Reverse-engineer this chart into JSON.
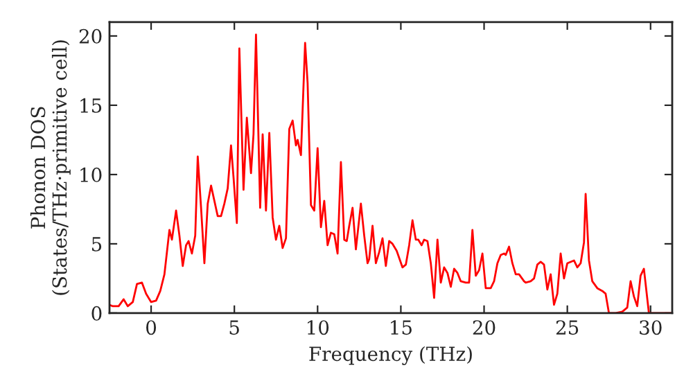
{
  "chart_data": {
    "type": "line",
    "xlabel": "Frequency (THz)",
    "ylabel": "Phonon DOS\n(States/THz·primitive cell)",
    "x": [
      -2.5,
      -2.3,
      -1.95,
      -1.65,
      -1.4,
      -1.1,
      -0.85,
      -0.55,
      -0.3,
      0.0,
      0.3,
      0.55,
      0.8,
      1.1,
      1.25,
      1.5,
      1.7,
      1.9,
      2.1,
      2.25,
      2.45,
      2.65,
      2.8,
      3.0,
      3.2,
      3.4,
      3.6,
      3.8,
      4.0,
      4.2,
      4.4,
      4.6,
      4.8,
      4.95,
      5.15,
      5.3,
      5.55,
      5.75,
      6.0,
      6.15,
      6.3,
      6.55,
      6.7,
      6.9,
      7.1,
      7.3,
      7.5,
      7.7,
      7.9,
      8.1,
      8.3,
      8.5,
      8.7,
      8.8,
      9.0,
      9.25,
      9.4,
      9.6,
      9.8,
      10.0,
      10.2,
      10.4,
      10.6,
      10.8,
      11.0,
      11.2,
      11.4,
      11.6,
      11.75,
      11.9,
      12.1,
      12.3,
      12.6,
      12.8,
      13.0,
      13.1,
      13.3,
      13.5,
      13.7,
      13.9,
      14.1,
      14.3,
      14.5,
      14.75,
      15.1,
      15.3,
      15.5,
      15.7,
      15.9,
      16.05,
      16.25,
      16.4,
      16.6,
      16.8,
      17.0,
      17.2,
      17.4,
      17.6,
      17.8,
      18.0,
      18.2,
      18.4,
      18.6,
      18.9,
      19.1,
      19.3,
      19.5,
      19.7,
      19.9,
      20.1,
      20.4,
      20.6,
      20.8,
      21.0,
      21.2,
      21.3,
      21.5,
      21.7,
      21.9,
      22.1,
      22.4,
      22.5,
      22.8,
      23.0,
      23.2,
      23.4,
      23.6,
      23.8,
      24.0,
      24.2,
      24.4,
      24.6,
      24.8,
      25.0,
      25.2,
      25.4,
      25.6,
      25.8,
      26.0,
      26.1,
      26.3,
      26.5,
      26.8,
      27.1,
      27.3,
      27.5,
      27.9,
      28.3,
      28.6,
      28.8,
      29.0,
      29.2,
      29.4,
      29.6,
      29.9,
      31.3
    ],
    "series": [
      {
        "color": "#ff0000",
        "values": [
          0.6,
          0.5,
          0.5,
          1.0,
          0.5,
          0.8,
          2.1,
          2.2,
          1.4,
          0.8,
          0.9,
          1.6,
          2.8,
          6.0,
          5.3,
          7.4,
          5.6,
          3.4,
          4.9,
          5.2,
          4.3,
          5.6,
          11.3,
          7.6,
          3.6,
          7.9,
          9.2,
          8.1,
          7.0,
          7.0,
          7.9,
          9.0,
          12.1,
          9.8,
          6.5,
          19.1,
          8.9,
          14.1,
          10.1,
          12.9,
          20.1,
          7.6,
          12.9,
          7.4,
          13.0,
          6.9,
          5.3,
          6.3,
          4.7,
          5.4,
          13.3,
          13.9,
          12.1,
          12.5,
          11.4,
          19.5,
          16.6,
          7.8,
          7.4,
          11.9,
          6.2,
          8.1,
          4.9,
          5.8,
          5.7,
          4.3,
          10.9,
          5.3,
          5.2,
          6.3,
          7.6,
          4.6,
          7.9,
          5.6,
          3.6,
          3.9,
          6.3,
          3.6,
          4.4,
          5.4,
          3.4,
          5.2,
          5.0,
          4.5,
          3.3,
          3.5,
          4.9,
          6.7,
          5.3,
          5.3,
          4.9,
          5.3,
          5.2,
          3.6,
          1.1,
          5.3,
          2.2,
          3.3,
          2.9,
          1.9,
          3.2,
          2.9,
          2.3,
          2.2,
          2.2,
          6.0,
          2.7,
          3.1,
          4.3,
          1.8,
          1.8,
          2.3,
          3.6,
          4.2,
          4.3,
          4.2,
          4.8,
          3.6,
          2.8,
          2.8,
          2.3,
          2.2,
          2.3,
          2.5,
          3.5,
          3.7,
          3.5,
          1.7,
          2.8,
          0.6,
          1.4,
          4.3,
          2.5,
          3.6,
          3.7,
          3.8,
          3.3,
          3.6,
          5.1,
          8.6,
          3.8,
          2.3,
          1.8,
          1.6,
          1.4,
          0.0,
          0.0,
          0.1,
          0.4,
          2.3,
          1.2,
          0.5,
          2.7,
          3.2,
          0.0,
          0.0
        ]
      }
    ],
    "xlim": [
      -2.5,
      31.3
    ],
    "ylim": [
      0,
      21.0
    ],
    "xticks": [
      0,
      5,
      10,
      15,
      20,
      25,
      30
    ],
    "yticks": [
      0,
      5,
      10,
      15,
      20
    ],
    "grid": false,
    "legend": false
  }
}
